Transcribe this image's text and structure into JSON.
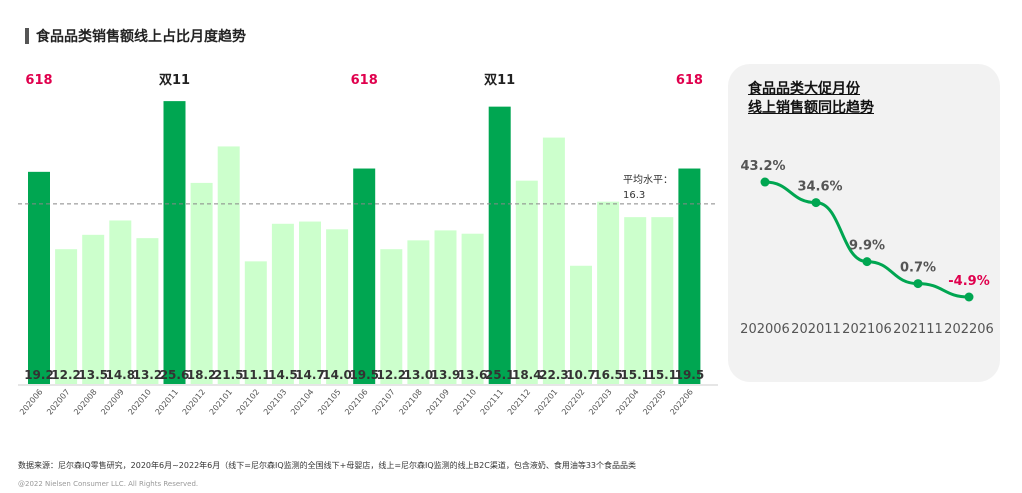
{
  "title": "食品品类销售额线上占比月度趋势",
  "chart_data": [
    {
      "type": "bar",
      "categories": [
        "202006",
        "202007",
        "202008",
        "202009",
        "202010",
        "202011",
        "202012",
        "202101",
        "202102",
        "202103",
        "202104",
        "202105",
        "202106",
        "202107",
        "202108",
        "202109",
        "202110",
        "202111",
        "202112",
        "202201",
        "202202",
        "202203",
        "202204",
        "202205",
        "202206"
      ],
      "values": [
        19.2,
        12.2,
        13.5,
        14.8,
        13.2,
        25.6,
        18.2,
        21.5,
        11.1,
        14.5,
        14.7,
        14.0,
        19.5,
        12.2,
        13.0,
        13.9,
        13.6,
        25.1,
        18.4,
        22.3,
        10.7,
        16.5,
        15.1,
        15.1,
        19.5
      ],
      "highlight": {
        "0": "618",
        "5": "双11",
        "12": "618",
        "17": "双11",
        "24": "618"
      },
      "average": {
        "label": "平均水平：",
        "value": "16.3"
      },
      "colors": {
        "highlight": "#00a651",
        "normal": "#ccffcc",
        "promo_618": "#e0004d",
        "promo_1111": "#222222"
      }
    },
    {
      "type": "line",
      "title": "食品品类大促月份\n线上销售额同比趋势",
      "title_lines": [
        "食品品类大促月份",
        "线上销售额同比趋势"
      ],
      "categories": [
        "202006",
        "202011",
        "202106",
        "202111",
        "202206"
      ],
      "values": [
        43.2,
        34.6,
        9.9,
        0.7,
        -4.9
      ],
      "labels": [
        "43.2%",
        "34.6%",
        "9.9%",
        "0.7%",
        "-4.9%"
      ],
      "colors": {
        "line": "#00a651",
        "positive": "#555555",
        "negative": "#e0004d"
      }
    }
  ],
  "footer": {
    "source": "数据来源：尼尔森IQ零售研究，2020年6月~2022年6月（线下=尼尔森IQ监测的全国线下+母婴店，线上=尼尔森IQ监测的线上B2C渠道，包含液奶、食用油等33个食品品类",
    "copyright": "@2022 Nielsen Consumer LLC. All Rights Reserved."
  }
}
